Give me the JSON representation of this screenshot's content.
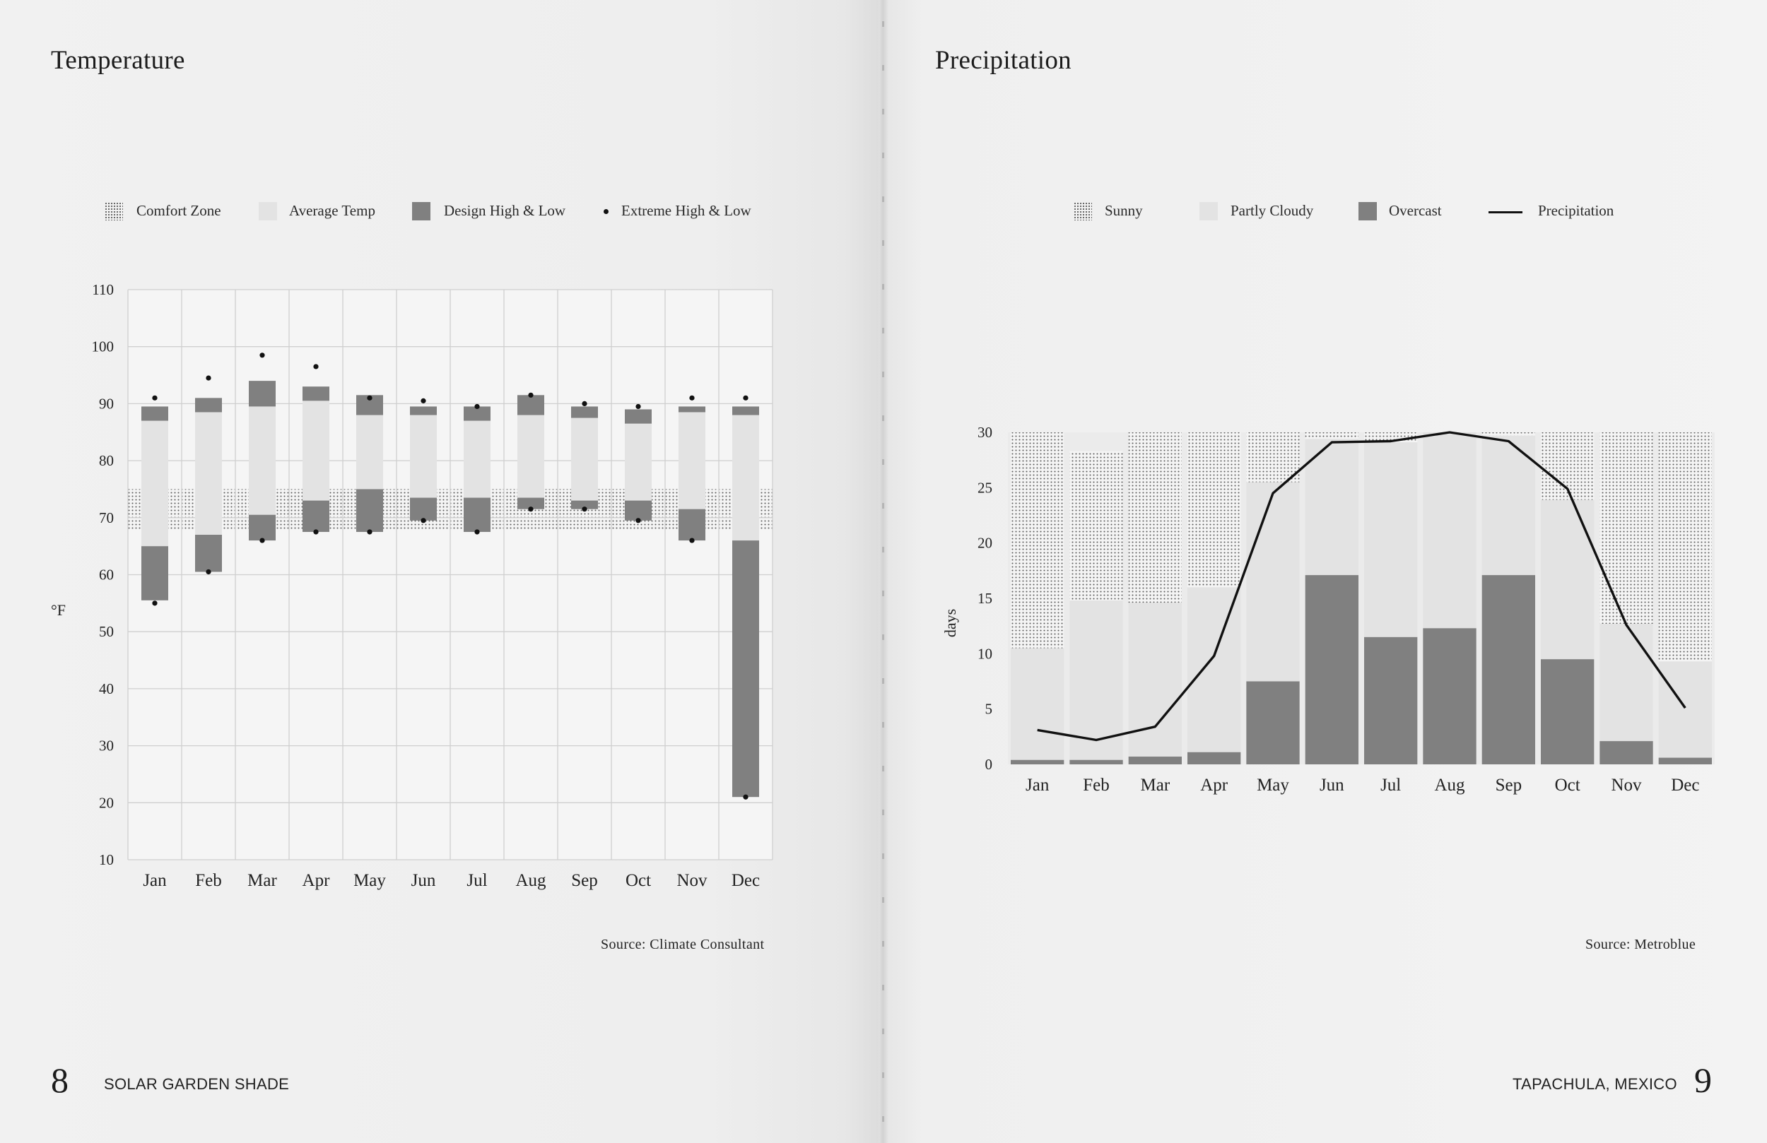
{
  "left_page": {
    "title": "Temperature",
    "legend": [
      {
        "label": "Comfort Zone",
        "swatch": "dots"
      },
      {
        "label": "Average Temp",
        "swatch": "light"
      },
      {
        "label": "Design High & Low",
        "swatch": "dark"
      },
      {
        "label": "Extreme High & Low",
        "swatch": "dot"
      }
    ],
    "source": "Source: Climate Consultant",
    "page_number": "8",
    "running_title": "SOLAR GARDEN SHADE"
  },
  "right_page": {
    "title": "Precipitation",
    "legend": [
      {
        "label": "Sunny",
        "swatch": "dots"
      },
      {
        "label": "Partly Cloudy",
        "swatch": "light"
      },
      {
        "label": "Overcast",
        "swatch": "dark"
      },
      {
        "label": "Precipitation",
        "swatch": "line"
      }
    ],
    "source": "Source: Metroblue",
    "page_number": "9",
    "running_title": "TAPACHULA, MEXICO"
  },
  "colors": {
    "comfort_dots": "#5a5a5a",
    "average": "#e3e3e3",
    "design": "#808080",
    "extreme": "#111111",
    "partly_cloudy": "#e3e3e3",
    "overcast": "#808080",
    "line": "#111111"
  },
  "chart_data": [
    {
      "type": "bar",
      "title": "Temperature",
      "ylabel": "°F",
      "xlabel": "",
      "ylim": [
        10,
        110
      ],
      "yticks": [
        10,
        20,
        30,
        40,
        50,
        60,
        70,
        80,
        90,
        100,
        110
      ],
      "grid": true,
      "legend_position": "top",
      "categories": [
        "Jan",
        "Feb",
        "Mar",
        "Apr",
        "May",
        "Jun",
        "Jul",
        "Aug",
        "Sep",
        "Oct",
        "Nov",
        "Dec"
      ],
      "comfort_zone": [
        68,
        75
      ],
      "series": [
        {
          "name": "Average Temp",
          "low": [
            65,
            67,
            70,
            73,
            75,
            73.5,
            73.5,
            73.5,
            73,
            73,
            71.5,
            66
          ],
          "high": [
            87,
            88.5,
            89.5,
            90.5,
            88,
            88,
            87,
            88,
            87.5,
            86.5,
            88.5,
            88
          ]
        },
        {
          "name": "Design High",
          "low": [
            87,
            88.5,
            89.5,
            90.5,
            88,
            88,
            87,
            88,
            87.5,
            86.5,
            88.5,
            88
          ],
          "high": [
            89.5,
            91,
            94,
            93,
            91.5,
            89.5,
            89.5,
            91.5,
            89.5,
            89,
            89.5,
            89.5
          ]
        },
        {
          "name": "Design Low",
          "low": [
            55.5,
            60.5,
            66,
            67.5,
            67.5,
            69.5,
            67.5,
            71.5,
            71.5,
            69.5,
            66,
            21
          ],
          "high": [
            65,
            67,
            70.5,
            73,
            75,
            73.5,
            73.5,
            73.5,
            73,
            73,
            71.5,
            66
          ]
        },
        {
          "name": "Extreme High",
          "values": [
            91,
            94.5,
            98.5,
            96.5,
            91,
            90.5,
            89.5,
            91.5,
            90,
            89.5,
            91,
            91
          ]
        },
        {
          "name": "Extreme Low",
          "values": [
            55,
            60.5,
            66,
            67.5,
            67.5,
            69.5,
            67.5,
            71.5,
            71.5,
            69.5,
            66,
            21
          ]
        }
      ]
    },
    {
      "type": "bar",
      "title": "Precipitation",
      "ylabel": "days",
      "xlabel": "",
      "ylim": [
        0,
        30
      ],
      "yticks": [
        0,
        5,
        10,
        15,
        20,
        25,
        30
      ],
      "grid": false,
      "stacked": true,
      "legend_position": "top",
      "categories": [
        "Jan",
        "Feb",
        "Mar",
        "Apr",
        "May",
        "Jun",
        "Jul",
        "Aug",
        "Sep",
        "Oct",
        "Nov",
        "Dec"
      ],
      "series": [
        {
          "name": "Overcast",
          "values": [
            0.4,
            0.4,
            0.7,
            1.1,
            7.5,
            17.1,
            11.5,
            12.3,
            17.1,
            9.5,
            2.1,
            0.6
          ]
        },
        {
          "name": "Partly Cloudy",
          "values": [
            10.1,
            14.4,
            13.9,
            14.9,
            18.0,
            12.3,
            17.6,
            17.7,
            12.6,
            14.4,
            10.6,
            8.7
          ]
        },
        {
          "name": "Sunny",
          "values": [
            19.5,
            13.5,
            15.4,
            14.0,
            4.5,
            0.6,
            0.9,
            0.0,
            0.3,
            6.1,
            17.3,
            20.7
          ]
        },
        {
          "name": "Precipitation",
          "type": "line",
          "values": [
            3.1,
            2.2,
            3.4,
            9.8,
            24.5,
            29.1,
            29.2,
            30.0,
            29.2,
            24.9,
            12.6,
            5.1
          ]
        }
      ]
    }
  ]
}
